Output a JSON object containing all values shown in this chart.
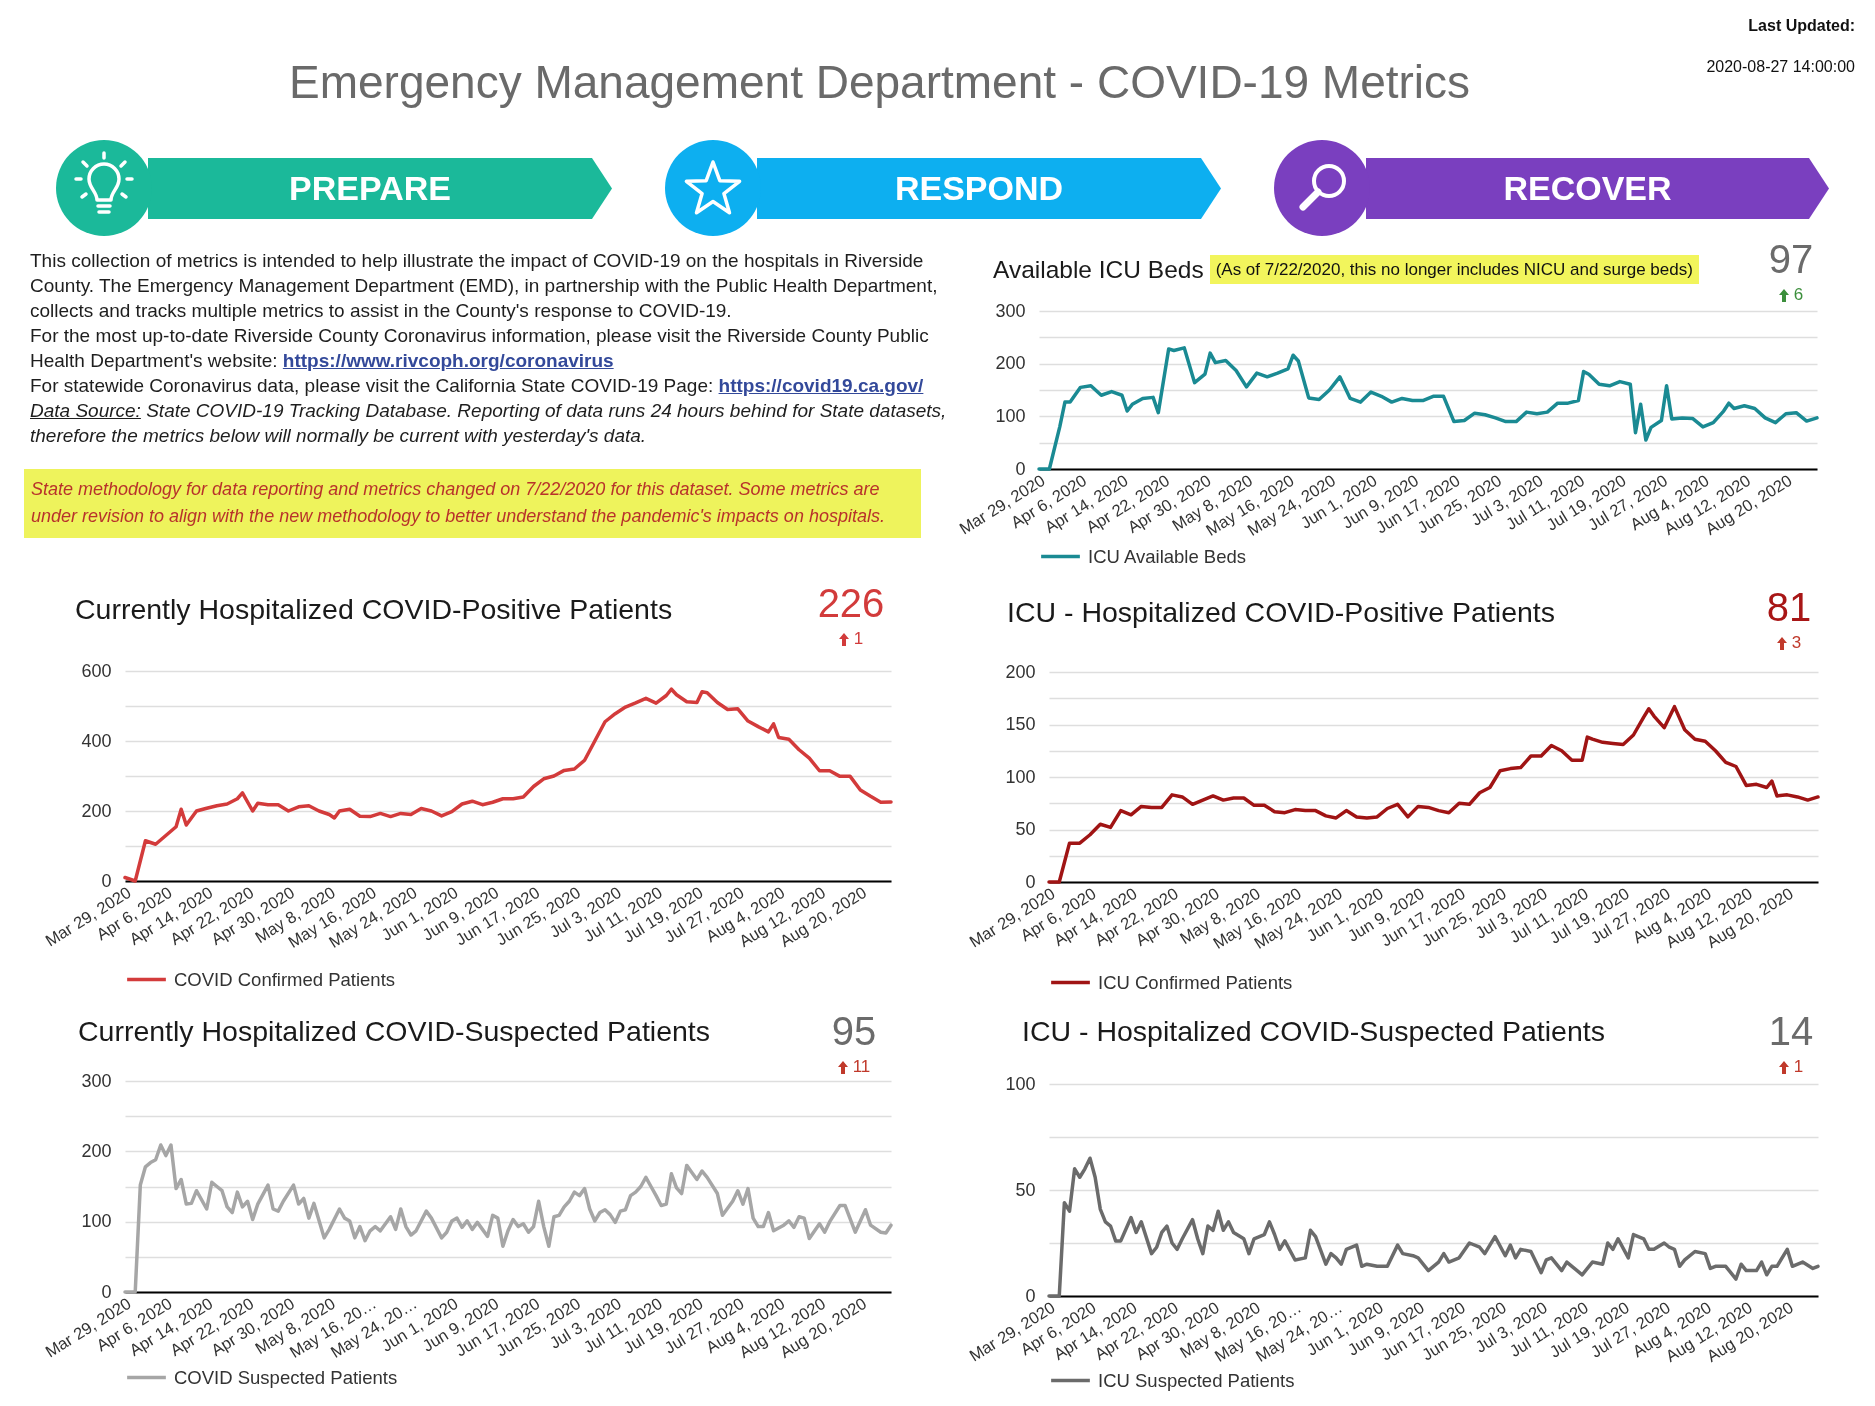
{
  "chart_data": [
    {
      "type": "other",
      "title": "Emergency Management Department - COVID-19 Metrics",
      "annotations": [
        "Last Updated:",
        "2020-08-27 14:00:00",
        "PREPARE",
        "RESPOND",
        "RECOVER",
        "This collection of metrics is intended to help illustrate the impact of COVID-19 on the hospitals in Riverside County. The Emergency Management Department (EMD), in partnership with the Public Health Department, collects and tracks multiple metrics to assist in the County's response to COVID-19.",
        "For the most up-to-date Riverside County Coronavirus information, please visit the Riverside County Public Health Department's website: https://www.rivcoph.org/coronavirus",
        "For statewide Coronavirus data, please visit the California State COVID-19 Page: https://covid19.ca.gov/",
        "Data Source: State COVID-19 Tracking Database. Reporting of data runs 24 hours behind for State datasets, therefore the metrics below will normally be current with yesterday's data.",
        "State methodology for data reporting and metrics changed on 7/22/2020 for this dataset. Some metrics are under revision to align with the new methodology to better understand the pandemic's impacts on hospitals."
      ]
    },
    {
      "type": "line",
      "title": "Available ICU Beds",
      "subtitle": "(As of 7/22/2020, this no longer includes NICU and surge beds)",
      "annotations": [
        "97",
        "6"
      ],
      "x": [
        "2020-03-29",
        "2020-03-31",
        "2020-04-02",
        "2020-04-03",
        "2020-04-04",
        "2020-04-06",
        "2020-04-08",
        "2020-04-10",
        "2020-04-12",
        "2020-04-14",
        "2020-04-15",
        "2020-04-16",
        "2020-04-18",
        "2020-04-20",
        "2020-04-21",
        "2020-04-23",
        "2020-04-24",
        "2020-04-26",
        "2020-04-28",
        "2020-04-30",
        "2020-05-01",
        "2020-05-02",
        "2020-05-04",
        "2020-05-06",
        "2020-05-08",
        "2020-05-10",
        "2020-05-12",
        "2020-05-14",
        "2020-05-16",
        "2020-05-17",
        "2020-05-18",
        "2020-05-20",
        "2020-05-22",
        "2020-05-24",
        "2020-05-26",
        "2020-05-28",
        "2020-05-30",
        "2020-06-01",
        "2020-06-03",
        "2020-06-05",
        "2020-06-07",
        "2020-06-09",
        "2020-06-11",
        "2020-06-13",
        "2020-06-15",
        "2020-06-17",
        "2020-06-19",
        "2020-06-21",
        "2020-06-23",
        "2020-06-25",
        "2020-06-27",
        "2020-06-29",
        "2020-07-01",
        "2020-07-03",
        "2020-07-05",
        "2020-07-07",
        "2020-07-09",
        "2020-07-11",
        "2020-07-12",
        "2020-07-13",
        "2020-07-15",
        "2020-07-17",
        "2020-07-19",
        "2020-07-21",
        "2020-07-22",
        "2020-07-23",
        "2020-07-24",
        "2020-07-25",
        "2020-07-27",
        "2020-07-28",
        "2020-07-29",
        "2020-07-31",
        "2020-08-02",
        "2020-08-04",
        "2020-08-06",
        "2020-08-08",
        "2020-08-09",
        "2020-08-10",
        "2020-08-12",
        "2020-08-14",
        "2020-08-16",
        "2020-08-18",
        "2020-08-20",
        "2020-08-22",
        "2020-08-24",
        "2020-08-26"
      ],
      "series": [
        {
          "name": "ICU Available Beds",
          "color": "#1a8a93",
          "values": [
            0,
            0,
            80,
            127,
            127,
            155,
            158,
            140,
            147,
            140,
            110,
            123,
            134,
            136,
            107,
            228,
            225,
            230,
            164,
            180,
            220,
            202,
            206,
            187,
            156,
            182,
            175,
            182,
            190,
            216,
            205,
            135,
            132,
            150,
            175,
            134,
            127,
            146,
            138,
            127,
            134,
            130,
            130,
            138,
            138,
            90,
            92,
            106,
            103,
            97,
            90,
            90,
            108,
            105,
            108,
            125,
            125,
            130,
            185,
            180,
            161,
            158,
            166,
            161,
            69,
            123,
            55,
            79,
            92,
            158,
            95,
            97,
            96,
            80,
            88,
            110,
            125,
            115,
            120,
            115,
            97,
            88,
            105,
            107,
            91,
            97
          ]
        }
      ],
      "xlim": [
        "2020-03-29",
        "2020-08-26"
      ],
      "xticks": [
        {
          "value": "2020-03-29",
          "label": "Mar 29, 2020"
        },
        {
          "value": "2020-04-06",
          "label": "Apr 6, 2020"
        },
        {
          "value": "2020-04-14",
          "label": "Apr 14, 2020"
        },
        {
          "value": "2020-04-22",
          "label": "Apr 22, 2020"
        },
        {
          "value": "2020-04-30",
          "label": "Apr 30, 2020"
        },
        {
          "value": "2020-05-08",
          "label": "May 8, 2020"
        },
        {
          "value": "2020-05-16",
          "label": "May 16, 2020"
        },
        {
          "value": "2020-05-24",
          "label": "May 24, 2020"
        },
        {
          "value": "2020-06-01",
          "label": "Jun 1, 2020"
        },
        {
          "value": "2020-06-09",
          "label": "Jun 9, 2020"
        },
        {
          "value": "2020-06-17",
          "label": "Jun 17, 2020"
        },
        {
          "value": "2020-06-25",
          "label": "Jun 25, 2020"
        },
        {
          "value": "2020-07-03",
          "label": "Jul 3, 2020"
        },
        {
          "value": "2020-07-11",
          "label": "Jul 11, 2020"
        },
        {
          "value": "2020-07-19",
          "label": "Jul 19, 2020"
        },
        {
          "value": "2020-07-27",
          "label": "Jul 27, 2020"
        },
        {
          "value": "2020-08-04",
          "label": "Aug 4, 2020"
        },
        {
          "value": "2020-08-12",
          "label": "Aug 12, 2020"
        },
        {
          "value": "2020-08-20",
          "label": "Aug 20, 2020"
        }
      ],
      "ylim": [
        0,
        300
      ],
      "yticks": [
        0,
        {
          "value": 50,
          "label": null
        },
        100,
        {
          "value": 150,
          "label": null
        },
        200,
        {
          "value": 250,
          "label": null
        },
        300
      ],
      "grid": "y",
      "legend": "bottom left"
    },
    {
      "type": "line",
      "title": "Currently Hospitalized COVID-Positive Patients",
      "annotations": [
        "226",
        "1"
      ],
      "x": [
        "2020-03-29",
        "2020-03-31",
        "2020-04-02",
        "2020-04-04",
        "2020-04-06",
        "2020-04-08",
        "2020-04-09",
        "2020-04-10",
        "2020-04-12",
        "2020-04-14",
        "2020-04-16",
        "2020-04-18",
        "2020-04-20",
        "2020-04-21",
        "2020-04-23",
        "2020-04-24",
        "2020-04-26",
        "2020-04-28",
        "2020-04-30",
        "2020-05-02",
        "2020-05-04",
        "2020-05-06",
        "2020-05-08",
        "2020-05-09",
        "2020-05-10",
        "2020-05-12",
        "2020-05-14",
        "2020-05-16",
        "2020-05-18",
        "2020-05-20",
        "2020-05-22",
        "2020-05-24",
        "2020-05-26",
        "2020-05-28",
        "2020-05-30",
        "2020-06-01",
        "2020-06-03",
        "2020-06-05",
        "2020-06-07",
        "2020-06-09",
        "2020-06-11",
        "2020-06-13",
        "2020-06-15",
        "2020-06-17",
        "2020-06-19",
        "2020-06-21",
        "2020-06-23",
        "2020-06-25",
        "2020-06-27",
        "2020-06-29",
        "2020-07-01",
        "2020-07-03",
        "2020-07-05",
        "2020-07-07",
        "2020-07-09",
        "2020-07-11",
        "2020-07-13",
        "2020-07-14",
        "2020-07-15",
        "2020-07-17",
        "2020-07-19",
        "2020-07-20",
        "2020-07-21",
        "2020-07-23",
        "2020-07-25",
        "2020-07-27",
        "2020-07-29",
        "2020-07-31",
        "2020-08-02",
        "2020-08-03",
        "2020-08-04",
        "2020-08-06",
        "2020-08-08",
        "2020-08-10",
        "2020-08-12",
        "2020-08-14",
        "2020-08-16",
        "2020-08-18",
        "2020-08-20",
        "2020-08-22",
        "2020-08-24",
        "2020-08-26"
      ],
      "series": [
        {
          "name": "COVID Confirmed Patients",
          "color": "#d33b3b",
          "values": [
            10,
            0,
            115,
            105,
            130,
            155,
            205,
            160,
            200,
            208,
            215,
            220,
            235,
            252,
            200,
            222,
            218,
            218,
            200,
            212,
            215,
            200,
            190,
            180,
            200,
            205,
            185,
            184,
            193,
            184,
            193,
            190,
            207,
            200,
            186,
            198,
            220,
            228,
            218,
            225,
            235,
            235,
            240,
            270,
            292,
            300,
            316,
            320,
            345,
            400,
            455,
            478,
            497,
            509,
            522,
            508,
            530,
            548,
            532,
            512,
            510,
            541,
            538,
            510,
            490,
            492,
            457,
            441,
            426,
            449,
            410,
            405,
            375,
            351,
            315,
            315,
            299,
            299,
            260,
            242,
            225,
            226
          ]
        }
      ],
      "xlim": [
        "2020-03-29",
        "2020-08-26"
      ],
      "xticks": [
        {
          "value": "2020-03-29",
          "label": "Mar 29, 2020"
        },
        {
          "value": "2020-04-06",
          "label": "Apr 6, 2020"
        },
        {
          "value": "2020-04-14",
          "label": "Apr 14, 2020"
        },
        {
          "value": "2020-04-22",
          "label": "Apr 22, 2020"
        },
        {
          "value": "2020-04-30",
          "label": "Apr 30, 2020"
        },
        {
          "value": "2020-05-08",
          "label": "May 8, 2020"
        },
        {
          "value": "2020-05-16",
          "label": "May 16, 2020"
        },
        {
          "value": "2020-05-24",
          "label": "May 24, 2020"
        },
        {
          "value": "2020-06-01",
          "label": "Jun 1, 2020"
        },
        {
          "value": "2020-06-09",
          "label": "Jun 9, 2020"
        },
        {
          "value": "2020-06-17",
          "label": "Jun 17, 2020"
        },
        {
          "value": "2020-06-25",
          "label": "Jun 25, 2020"
        },
        {
          "value": "2020-07-03",
          "label": "Jul 3, 2020"
        },
        {
          "value": "2020-07-11",
          "label": "Jul 11, 2020"
        },
        {
          "value": "2020-07-19",
          "label": "Jul 19, 2020"
        },
        {
          "value": "2020-07-27",
          "label": "Jul 27, 2020"
        },
        {
          "value": "2020-08-04",
          "label": "Aug 4, 2020"
        },
        {
          "value": "2020-08-12",
          "label": "Aug 12, 2020"
        },
        {
          "value": "2020-08-20",
          "label": "Aug 20, 2020"
        }
      ],
      "ylim": [
        0,
        600
      ],
      "yticks": [
        0,
        {
          "value": 100,
          "label": null
        },
        200,
        {
          "value": 300,
          "label": null
        },
        400,
        {
          "value": 500,
          "label": null
        },
        600
      ],
      "grid": "y",
      "legend": "bottom left"
    },
    {
      "type": "line",
      "title": "ICU - Hospitalized COVID-Positive Patients",
      "annotations": [
        "81",
        "3"
      ],
      "x": [
        "2020-03-29",
        "2020-03-31",
        "2020-04-02",
        "2020-04-04",
        "2020-04-06",
        "2020-04-08",
        "2020-04-10",
        "2020-04-12",
        "2020-04-14",
        "2020-04-16",
        "2020-04-18",
        "2020-04-20",
        "2020-04-22",
        "2020-04-24",
        "2020-04-26",
        "2020-04-28",
        "2020-04-30",
        "2020-05-02",
        "2020-05-04",
        "2020-05-06",
        "2020-05-08",
        "2020-05-10",
        "2020-05-12",
        "2020-05-14",
        "2020-05-16",
        "2020-05-18",
        "2020-05-20",
        "2020-05-22",
        "2020-05-24",
        "2020-05-26",
        "2020-05-28",
        "2020-05-30",
        "2020-06-01",
        "2020-06-03",
        "2020-06-05",
        "2020-06-07",
        "2020-06-09",
        "2020-06-11",
        "2020-06-13",
        "2020-06-15",
        "2020-06-17",
        "2020-06-19",
        "2020-06-21",
        "2020-06-23",
        "2020-06-25",
        "2020-06-27",
        "2020-06-29",
        "2020-07-01",
        "2020-07-03",
        "2020-07-05",
        "2020-07-07",
        "2020-07-09",
        "2020-07-11",
        "2020-07-12",
        "2020-07-13",
        "2020-07-15",
        "2020-07-17",
        "2020-07-19",
        "2020-07-21",
        "2020-07-23",
        "2020-07-24",
        "2020-07-25",
        "2020-07-27",
        "2020-07-29",
        "2020-07-31",
        "2020-08-02",
        "2020-08-04",
        "2020-08-06",
        "2020-08-08",
        "2020-08-10",
        "2020-08-12",
        "2020-08-14",
        "2020-08-16",
        "2020-08-17",
        "2020-08-18",
        "2020-08-20",
        "2020-08-22",
        "2020-08-24",
        "2020-08-26"
      ],
      "series": [
        {
          "name": "ICU Confirmed Patients",
          "color": "#a01414",
          "values": [
            0,
            0,
            37,
            37,
            45,
            55,
            52,
            68,
            64,
            72,
            71,
            71,
            83,
            81,
            74,
            78,
            82,
            78,
            80,
            80,
            73,
            73,
            67,
            66,
            69,
            68,
            68,
            63,
            61,
            68,
            62,
            61,
            62,
            70,
            74,
            62,
            72,
            71,
            68,
            66,
            75,
            74,
            85,
            90,
            106,
            108,
            109,
            120,
            120,
            130,
            125,
            116,
            116,
            138,
            136,
            133,
            132,
            131,
            140,
            157,
            165,
            158,
            147,
            167,
            145,
            136,
            134,
            125,
            114,
            110,
            92,
            93,
            90,
            96,
            82,
            83,
            81,
            78,
            81
          ]
        }
      ],
      "xlim": [
        "2020-03-29",
        "2020-08-26"
      ],
      "xticks": [
        {
          "value": "2020-03-29",
          "label": "Mar 29, 2020"
        },
        {
          "value": "2020-04-06",
          "label": "Apr 6, 2020"
        },
        {
          "value": "2020-04-14",
          "label": "Apr 14, 2020"
        },
        {
          "value": "2020-04-22",
          "label": "Apr 22, 2020"
        },
        {
          "value": "2020-04-30",
          "label": "Apr 30, 2020"
        },
        {
          "value": "2020-05-08",
          "label": "May 8, 2020"
        },
        {
          "value": "2020-05-16",
          "label": "May 16, 2020"
        },
        {
          "value": "2020-05-24",
          "label": "May 24, 2020"
        },
        {
          "value": "2020-06-01",
          "label": "Jun 1, 2020"
        },
        {
          "value": "2020-06-09",
          "label": "Jun 9, 2020"
        },
        {
          "value": "2020-06-17",
          "label": "Jun 17, 2020"
        },
        {
          "value": "2020-06-25",
          "label": "Jun 25, 2020"
        },
        {
          "value": "2020-07-03",
          "label": "Jul 3, 2020"
        },
        {
          "value": "2020-07-11",
          "label": "Jul 11, 2020"
        },
        {
          "value": "2020-07-19",
          "label": "Jul 19, 2020"
        },
        {
          "value": "2020-07-27",
          "label": "Jul 27, 2020"
        },
        {
          "value": "2020-08-04",
          "label": "Aug 4, 2020"
        },
        {
          "value": "2020-08-12",
          "label": "Aug 12, 2020"
        },
        {
          "value": "2020-08-20",
          "label": "Aug 20, 2020"
        }
      ],
      "ylim": [
        0,
        200
      ],
      "yticks": [
        0,
        {
          "value": 25,
          "label": null
        },
        50,
        {
          "value": 75,
          "label": null
        },
        100,
        {
          "value": 125,
          "label": null
        },
        150,
        {
          "value": 175,
          "label": null
        },
        200
      ],
      "grid": "y",
      "legend": "bottom left"
    },
    {
      "type": "line",
      "title": "Currently Hospitalized COVID-Suspected Patients",
      "annotations": [
        "95",
        "11"
      ],
      "x": [
        "2020-03-29",
        "2020-03-31",
        "2020-04-01",
        "2020-04-02",
        "2020-04-03",
        "2020-04-04",
        "2020-04-05",
        "2020-04-06",
        "2020-04-07",
        "2020-04-08",
        "2020-04-09",
        "2020-04-10",
        "2020-04-11",
        "2020-04-12",
        "2020-04-14",
        "2020-04-15",
        "2020-04-16",
        "2020-04-17",
        "2020-04-18",
        "2020-04-19",
        "2020-04-20",
        "2020-04-21",
        "2020-04-22",
        "2020-04-23",
        "2020-04-24",
        "2020-04-26",
        "2020-04-27",
        "2020-04-28",
        "2020-04-29",
        "2020-05-01",
        "2020-05-02",
        "2020-05-03",
        "2020-05-04",
        "2020-05-05",
        "2020-05-07",
        "2020-05-08",
        "2020-05-10",
        "2020-05-11",
        "2020-05-12",
        "2020-05-13",
        "2020-05-14",
        "2020-05-15",
        "2020-05-16",
        "2020-05-17",
        "2020-05-18",
        "2020-05-20",
        "2020-05-21",
        "2020-05-22",
        "2020-05-23",
        "2020-05-24",
        "2020-05-25",
        "2020-05-27",
        "2020-05-28",
        "2020-05-30",
        "2020-05-31",
        "2020-06-01",
        "2020-06-02",
        "2020-06-03",
        "2020-06-04",
        "2020-06-05",
        "2020-06-06",
        "2020-06-07",
        "2020-06-08",
        "2020-06-09",
        "2020-06-10",
        "2020-06-11",
        "2020-06-12",
        "2020-06-13",
        "2020-06-14",
        "2020-06-15",
        "2020-06-16",
        "2020-06-17",
        "2020-06-18",
        "2020-06-19",
        "2020-06-20",
        "2020-06-21",
        "2020-06-22",
        "2020-06-23",
        "2020-06-24",
        "2020-06-25",
        "2020-06-26",
        "2020-06-27",
        "2020-06-28",
        "2020-06-29",
        "2020-06-30",
        "2020-07-01",
        "2020-07-02",
        "2020-07-03",
        "2020-07-04",
        "2020-07-05",
        "2020-07-06",
        "2020-07-07",
        "2020-07-08",
        "2020-07-09",
        "2020-07-10",
        "2020-07-11",
        "2020-07-12",
        "2020-07-13",
        "2020-07-14",
        "2020-07-15",
        "2020-07-16",
        "2020-07-17",
        "2020-07-18",
        "2020-07-19",
        "2020-07-20",
        "2020-07-21",
        "2020-07-23",
        "2020-07-24",
        "2020-07-26",
        "2020-07-27",
        "2020-07-28",
        "2020-07-29",
        "2020-07-30",
        "2020-07-31",
        "2020-08-01",
        "2020-08-02",
        "2020-08-03",
        "2020-08-05",
        "2020-08-06",
        "2020-08-07",
        "2020-08-08",
        "2020-08-09",
        "2020-08-10",
        "2020-08-12",
        "2020-08-13",
        "2020-08-14",
        "2020-08-16",
        "2020-08-17",
        "2020-08-19",
        "2020-08-21",
        "2020-08-22",
        "2020-08-24",
        "2020-08-25",
        "2020-08-26"
      ],
      "series": [
        {
          "name": "COVID Suspected Patients",
          "color": "#a6a6a6",
          "values": [
            0,
            0,
            152,
            178,
            184,
            188,
            209,
            194,
            209,
            147,
            160,
            125,
            126,
            144,
            118,
            156,
            150,
            144,
            121,
            113,
            142,
            121,
            129,
            103,
            125,
            152,
            118,
            115,
            129,
            152,
            125,
            133,
            105,
            126,
            77,
            89,
            118,
            105,
            101,
            77,
            93,
            73,
            87,
            93,
            87,
            107,
            89,
            118,
            93,
            81,
            87,
            115,
            105,
            77,
            85,
            101,
            105,
            92,
            101,
            89,
            99,
            89,
            79,
            109,
            105,
            65,
            87,
            103,
            93,
            97,
            85,
            93,
            129,
            93,
            65,
            107,
            109,
            121,
            129,
            142,
            137,
            147,
            118,
            101,
            113,
            117,
            110,
            99,
            115,
            117,
            137,
            142,
            150,
            163,
            150,
            137,
            123,
            125,
            168,
            148,
            140,
            180,
            170,
            160,
            172,
            163,
            140,
            109,
            129,
            144,
            125,
            147,
            105,
            93,
            93,
            113,
            87,
            95,
            101,
            92,
            107,
            105,
            76,
            97,
            85,
            100,
            123,
            123,
            85,
            117,
            95,
            85,
            84,
            95
          ]
        }
      ],
      "xlim": [
        "2020-03-29",
        "2020-08-26"
      ],
      "xticks": [
        {
          "value": "2020-03-29",
          "label": "Mar 29, 2020"
        },
        {
          "value": "2020-04-06",
          "label": "Apr 6, 2020"
        },
        {
          "value": "2020-04-14",
          "label": "Apr 14, 2020"
        },
        {
          "value": "2020-04-22",
          "label": "Apr 22, 2020"
        },
        {
          "value": "2020-04-30",
          "label": "Apr 30, 2020"
        },
        {
          "value": "2020-05-08",
          "label": "May 8, 2020"
        },
        {
          "value": "2020-05-16",
          "label": "May 16, 20…"
        },
        {
          "value": "2020-05-24",
          "label": "May 24, 20…"
        },
        {
          "value": "2020-06-01",
          "label": "Jun 1, 2020"
        },
        {
          "value": "2020-06-09",
          "label": "Jun 9, 2020"
        },
        {
          "value": "2020-06-17",
          "label": "Jun 17, 2020"
        },
        {
          "value": "2020-06-25",
          "label": "Jun 25, 2020"
        },
        {
          "value": "2020-07-03",
          "label": "Jul 3, 2020"
        },
        {
          "value": "2020-07-11",
          "label": "Jul 11, 2020"
        },
        {
          "value": "2020-07-19",
          "label": "Jul 19, 2020"
        },
        {
          "value": "2020-07-27",
          "label": "Jul 27, 2020"
        },
        {
          "value": "2020-08-04",
          "label": "Aug 4, 2020"
        },
        {
          "value": "2020-08-12",
          "label": "Aug 12, 2020"
        },
        {
          "value": "2020-08-20",
          "label": "Aug 20, 2020"
        }
      ],
      "ylim": [
        0,
        300
      ],
      "yticks": [
        0,
        {
          "value": 50,
          "label": null
        },
        100,
        {
          "value": 150,
          "label": null
        },
        200,
        {
          "value": 250,
          "label": null
        },
        300
      ],
      "grid": "y",
      "legend": "bottom left"
    },
    {
      "type": "line",
      "title": "ICU - Hospitalized COVID-Suspected Patients",
      "annotations": [
        "14",
        "1"
      ],
      "x": [
        "2020-03-29",
        "2020-03-31",
        "2020-04-01",
        "2020-04-02",
        "2020-04-03",
        "2020-04-04",
        "2020-04-05",
        "2020-04-06",
        "2020-04-07",
        "2020-04-08",
        "2020-04-09",
        "2020-04-10",
        "2020-04-11",
        "2020-04-12",
        "2020-04-14",
        "2020-04-15",
        "2020-04-16",
        "2020-04-18",
        "2020-04-19",
        "2020-04-20",
        "2020-04-21",
        "2020-04-22",
        "2020-04-23",
        "2020-04-24",
        "2020-04-26",
        "2020-04-27",
        "2020-04-28",
        "2020-04-29",
        "2020-04-30",
        "2020-05-01",
        "2020-05-02",
        "2020-05-03",
        "2020-05-04",
        "2020-05-06",
        "2020-05-07",
        "2020-05-08",
        "2020-05-10",
        "2020-05-11",
        "2020-05-12",
        "2020-05-13",
        "2020-05-14",
        "2020-05-16",
        "2020-05-18",
        "2020-05-19",
        "2020-05-20",
        "2020-05-22",
        "2020-05-23",
        "2020-05-24",
        "2020-05-25",
        "2020-05-26",
        "2020-05-28",
        "2020-05-29",
        "2020-05-30",
        "2020-06-01",
        "2020-06-03",
        "2020-06-05",
        "2020-06-06",
        "2020-06-08",
        "2020-06-09",
        "2020-06-11",
        "2020-06-13",
        "2020-06-14",
        "2020-06-15",
        "2020-06-17",
        "2020-06-19",
        "2020-06-21",
        "2020-06-22",
        "2020-06-24",
        "2020-06-26",
        "2020-06-27",
        "2020-06-28",
        "2020-06-29",
        "2020-07-01",
        "2020-07-03",
        "2020-07-04",
        "2020-07-05",
        "2020-07-07",
        "2020-07-08",
        "2020-07-09",
        "2020-07-11",
        "2020-07-13",
        "2020-07-15",
        "2020-07-16",
        "2020-07-17",
        "2020-07-18",
        "2020-07-20",
        "2020-07-21",
        "2020-07-23",
        "2020-07-24",
        "2020-07-25",
        "2020-07-27",
        "2020-07-28",
        "2020-07-29",
        "2020-07-30",
        "2020-07-31",
        "2020-08-02",
        "2020-08-04",
        "2020-08-05",
        "2020-08-06",
        "2020-08-08",
        "2020-08-10",
        "2020-08-11",
        "2020-08-12",
        "2020-08-14",
        "2020-08-15",
        "2020-08-16",
        "2020-08-17",
        "2020-08-18",
        "2020-08-20",
        "2020-08-21",
        "2020-08-23",
        "2020-08-25",
        "2020-08-26"
      ],
      "series": [
        {
          "name": "ICU Suspected Patients",
          "color": "#6b6b6b",
          "values": [
            0,
            0,
            44,
            40,
            60,
            56,
            60,
            65,
            56,
            41,
            35,
            33,
            26,
            26,
            37,
            30,
            35,
            20,
            23,
            30,
            33,
            25,
            22,
            27,
            36,
            27,
            20,
            33,
            31,
            40,
            31,
            35,
            30,
            27,
            20,
            27,
            29,
            35,
            29,
            22,
            26,
            17,
            18,
            31,
            28,
            15,
            20,
            18,
            15,
            22,
            24,
            14,
            15,
            14,
            14,
            24,
            20,
            19,
            18,
            12,
            16,
            20,
            16,
            18,
            25,
            23,
            20,
            28,
            19,
            24,
            18,
            22,
            21,
            11,
            17,
            18,
            12,
            16,
            14,
            10,
            16,
            15,
            25,
            22,
            27,
            18,
            29,
            27,
            22,
            22,
            25,
            23,
            22,
            14,
            17,
            21,
            20,
            13,
            14,
            14,
            8,
            15,
            12,
            12,
            16,
            10,
            14,
            14,
            22,
            14,
            16,
            13,
            14
          ]
        }
      ],
      "xlim": [
        "2020-03-29",
        "2020-08-26"
      ],
      "xticks": [
        {
          "value": "2020-03-29",
          "label": "Mar 29, 2020"
        },
        {
          "value": "2020-04-06",
          "label": "Apr 6, 2020"
        },
        {
          "value": "2020-04-14",
          "label": "Apr 14, 2020"
        },
        {
          "value": "2020-04-22",
          "label": "Apr 22, 2020"
        },
        {
          "value": "2020-04-30",
          "label": "Apr 30, 2020"
        },
        {
          "value": "2020-05-08",
          "label": "May 8, 2020"
        },
        {
          "value": "2020-05-16",
          "label": "May 16, 20…"
        },
        {
          "value": "2020-05-24",
          "label": "May 24, 20…"
        },
        {
          "value": "2020-06-01",
          "label": "Jun 1, 2020"
        },
        {
          "value": "2020-06-09",
          "label": "Jun 9, 2020"
        },
        {
          "value": "2020-06-17",
          "label": "Jun 17, 2020"
        },
        {
          "value": "2020-06-25",
          "label": "Jun 25, 2020"
        },
        {
          "value": "2020-07-03",
          "label": "Jul 3, 2020"
        },
        {
          "value": "2020-07-11",
          "label": "Jul 11, 2020"
        },
        {
          "value": "2020-07-19",
          "label": "Jul 19, 2020"
        },
        {
          "value": "2020-07-27",
          "label": "Jul 27, 2020"
        },
        {
          "value": "2020-08-04",
          "label": "Aug 4, 2020"
        },
        {
          "value": "2020-08-12",
          "label": "Aug 12, 2020"
        },
        {
          "value": "2020-08-20",
          "label": "Aug 20, 2020"
        }
      ],
      "ylim": [
        0,
        100
      ],
      "yticks": [
        0,
        {
          "value": 25,
          "label": null
        },
        50,
        {
          "value": 75,
          "label": null
        },
        100
      ],
      "grid": "y",
      "legend": "bottom left"
    }
  ]
}
